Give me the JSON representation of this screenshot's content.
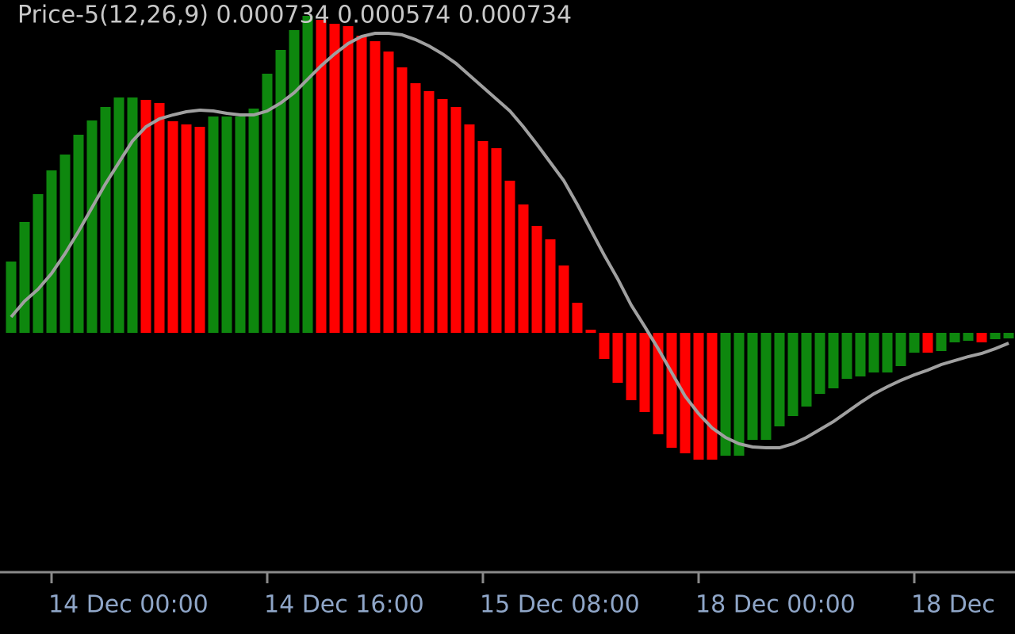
{
  "chart_data": {
    "type": "bar",
    "title": "Price-5(12,26,9) 0.000734 0.000574 0.000734",
    "categories": [
      null,
      null,
      null,
      "14 Dec 00:00",
      null,
      null,
      null,
      null,
      null,
      null,
      null,
      null,
      null,
      null,
      null,
      null,
      null,
      null,
      null,
      "14 Dec 16:00",
      null,
      null,
      null,
      null,
      null,
      null,
      null,
      null,
      null,
      null,
      null,
      null,
      null,
      null,
      null,
      "15 Dec 08:00",
      null,
      null,
      null,
      null,
      null,
      null,
      null,
      null,
      null,
      null,
      null,
      null,
      null,
      null,
      null,
      "18 Dec 00:00",
      null,
      null,
      null,
      null,
      null,
      null,
      null,
      null,
      null,
      null,
      null,
      null,
      null,
      null,
      null,
      "18 Dec",
      null,
      null,
      null,
      null,
      null,
      null,
      null
    ],
    "values": [
      0.9,
      1.4,
      1.75,
      2.05,
      2.25,
      2.5,
      2.68,
      2.85,
      2.97,
      2.97,
      2.94,
      2.9,
      2.67,
      2.63,
      2.6,
      2.73,
      2.73,
      2.73,
      2.83,
      3.27,
      3.57,
      3.82,
      4.0,
      3.95,
      3.9,
      3.87,
      3.75,
      3.68,
      3.55,
      3.35,
      3.15,
      3.05,
      2.95,
      2.85,
      2.63,
      2.42,
      2.33,
      1.92,
      1.62,
      1.35,
      1.18,
      0.85,
      0.38,
      0.04,
      -0.33,
      -0.63,
      -0.85,
      -1.0,
      -1.28,
      -1.45,
      -1.52,
      -1.6,
      -1.6,
      -1.55,
      -1.55,
      -1.35,
      -1.35,
      -1.18,
      -1.05,
      -0.93,
      -0.77,
      -0.7,
      -0.58,
      -0.55,
      -0.5,
      -0.5,
      -0.42,
      -0.25,
      -0.25,
      -0.23,
      -0.12,
      -0.1,
      -0.12,
      -0.08,
      -0.07
    ],
    "colors": [
      "#0e870e",
      "#0e870e",
      "#0e870e",
      "#0e870e",
      "#0e870e",
      "#0e870e",
      "#0e870e",
      "#0e870e",
      "#0e870e",
      "#0e870e",
      "#ff0000",
      "#ff0000",
      "#ff0000",
      "#ff0000",
      "#ff0000",
      "#0e870e",
      "#0e870e",
      "#0e870e",
      "#0e870e",
      "#0e870e",
      "#0e870e",
      "#0e870e",
      "#0e870e",
      "#ff0000",
      "#ff0000",
      "#ff0000",
      "#ff0000",
      "#ff0000",
      "#ff0000",
      "#ff0000",
      "#ff0000",
      "#ff0000",
      "#ff0000",
      "#ff0000",
      "#ff0000",
      "#ff0000",
      "#ff0000",
      "#ff0000",
      "#ff0000",
      "#ff0000",
      "#ff0000",
      "#ff0000",
      "#ff0000",
      "#ff0000",
      "#ff0000",
      "#ff0000",
      "#ff0000",
      "#ff0000",
      "#ff0000",
      "#ff0000",
      "#ff0000",
      "#ff0000",
      "#ff0000",
      "#0e870e",
      "#0e870e",
      "#0e870e",
      "#0e870e",
      "#0e870e",
      "#0e870e",
      "#0e870e",
      "#0e870e",
      "#0e870e",
      "#0e870e",
      "#0e870e",
      "#0e870e",
      "#0e870e",
      "#0e870e",
      "#0e870e",
      "#ff0000",
      "#0e870e",
      "#0e870e",
      "#0e870e",
      "#ff0000",
      "#0e870e",
      "#0e870e"
    ],
    "signal": {
      "color": "#a0a0a0",
      "values": [
        0.2,
        0.4,
        0.55,
        0.75,
        1.0,
        1.28,
        1.58,
        1.88,
        2.15,
        2.42,
        2.6,
        2.7,
        2.75,
        2.79,
        2.81,
        2.8,
        2.77,
        2.75,
        2.75,
        2.8,
        2.9,
        3.03,
        3.2,
        3.37,
        3.52,
        3.65,
        3.74,
        3.78,
        3.78,
        3.76,
        3.7,
        3.62,
        3.52,
        3.4,
        3.25,
        3.1,
        2.95,
        2.8,
        2.6,
        2.38,
        2.15,
        1.92,
        1.62,
        1.3,
        0.98,
        0.68,
        0.35,
        0.08,
        -0.2,
        -0.5,
        -0.8,
        -1.02,
        -1.2,
        -1.32,
        -1.4,
        -1.44,
        -1.45,
        -1.45,
        -1.4,
        -1.32,
        -1.22,
        -1.12,
        -1.0,
        -0.88,
        -0.77,
        -0.68,
        -0.6,
        -0.53,
        -0.47,
        -0.4,
        -0.35,
        -0.3,
        -0.26,
        -0.2,
        -0.13
      ]
    },
    "ylim": [
      -3.02,
      4.2
    ]
  }
}
